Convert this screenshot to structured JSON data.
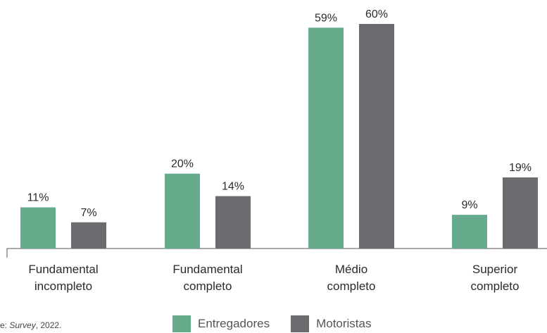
{
  "chart_data": {
    "type": "bar",
    "categories": [
      [
        "Fundamental",
        "incompleto"
      ],
      [
        "Fundamental",
        "completo"
      ],
      [
        "Médio",
        "completo"
      ],
      [
        "Superior",
        "completo"
      ]
    ],
    "series": [
      {
        "name": "Entregadores",
        "color": "#66ab8c",
        "values": [
          11,
          20,
          59,
          9
        ],
        "labels": [
          "11%",
          "20%",
          "59%",
          "9%"
        ]
      },
      {
        "name": "Motoristas",
        "color": "#6b6c6f",
        "values": [
          7,
          14,
          60,
          19
        ],
        "labels": [
          "7%",
          "14%",
          "60%",
          "19%"
        ]
      }
    ],
    "ylim": [
      0,
      60
    ],
    "legend_position": "bottom"
  },
  "source": {
    "prefix": "e: ",
    "italic": "Survey",
    "suffix": ", 2022."
  }
}
